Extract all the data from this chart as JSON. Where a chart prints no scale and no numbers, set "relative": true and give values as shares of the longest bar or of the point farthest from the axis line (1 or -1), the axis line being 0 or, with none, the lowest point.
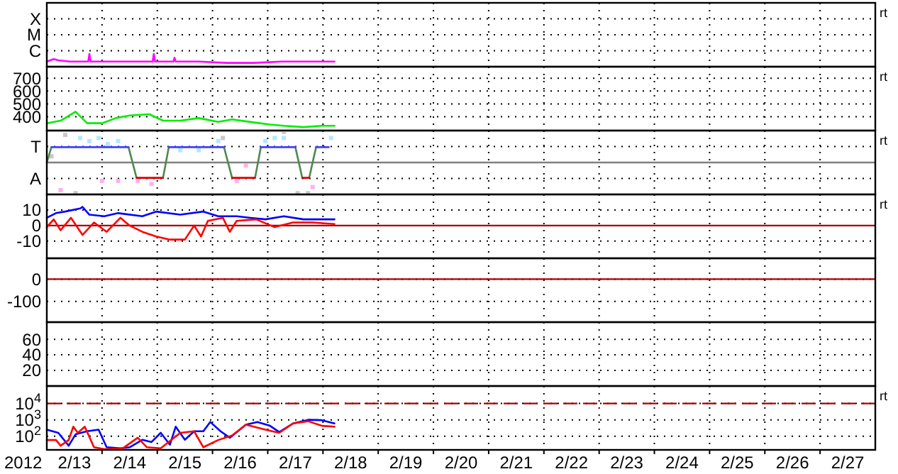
{
  "chart_data": [
    {
      "type": "line",
      "relative": true,
      "xlim": [
        "2012-02-13",
        "2012-02-28"
      ],
      "xticks": [
        {
          "value": "2012-02-14",
          "label": null
        },
        {
          "value": "2012-02-15",
          "label": null
        },
        {
          "value": "2012-02-16",
          "label": null
        },
        {
          "value": "2012-02-17",
          "label": null
        },
        {
          "value": "2012-02-18",
          "label": null
        },
        {
          "value": "2012-02-19",
          "label": null
        },
        {
          "value": "2012-02-20",
          "label": null
        },
        {
          "value": "2012-02-21",
          "label": null
        },
        {
          "value": "2012-02-22",
          "label": null
        },
        {
          "value": "2012-02-23",
          "label": null
        },
        {
          "value": "2012-02-24",
          "label": null
        },
        {
          "value": "2012-02-25",
          "label": null
        },
        {
          "value": "2012-02-26",
          "label": null
        },
        {
          "value": "2012-02-27",
          "label": null
        }
      ],
      "grid": true,
      "tick_labels": "y",
      "y2label": "rt",
      "annotations": [
        "X",
        "M",
        "C"
      ],
      "series": [
        {
          "color": "#ff00ff",
          "x": [
            "2012-02-13T00:00",
            "2012-02-13T03:00",
            "2012-02-13T05:00",
            "2012-02-13T10:00",
            "2012-02-13T18:00",
            "2012-02-13T18:30",
            "2012-02-13T19:00",
            "2012-02-14T06:00",
            "2012-02-14T22:00",
            "2012-02-14T22:30",
            "2012-02-14T23:00",
            "2012-02-15T07:00",
            "2012-02-15T07:30",
            "2012-02-15T08:00",
            "2012-02-15T18:00",
            "2012-02-16T06:00",
            "2012-02-16T18:00",
            "2012-02-17T06:00",
            "2012-02-17T18:00",
            "2012-02-18T05:00"
          ],
          "values": [
            0.4,
            0.6,
            0.5,
            0.4,
            0.4,
            1,
            0.4,
            0.4,
            0.4,
            1,
            0.4,
            0.4,
            0.7,
            0.4,
            0.4,
            0.3,
            0.3,
            0.4,
            0.4,
            0.4
          ]
        }
      ]
    },
    {
      "type": "line",
      "ylim": [
        293,
        789
      ],
      "yticks": [
        700,
        600,
        500,
        400
      ],
      "xlim": [
        "2012-02-13",
        "2012-02-28"
      ],
      "xticks": [
        {
          "value": "2012-02-14",
          "label": null
        },
        {
          "value": "2012-02-15",
          "label": null
        },
        {
          "value": "2012-02-16",
          "label": null
        },
        {
          "value": "2012-02-17",
          "label": null
        },
        {
          "value": "2012-02-18",
          "label": null
        },
        {
          "value": "2012-02-19",
          "label": null
        },
        {
          "value": "2012-02-20",
          "label": null
        },
        {
          "value": "2012-02-21",
          "label": null
        },
        {
          "value": "2012-02-22",
          "label": null
        },
        {
          "value": "2012-02-23",
          "label": null
        },
        {
          "value": "2012-02-24",
          "label": null
        },
        {
          "value": "2012-02-25",
          "label": null
        },
        {
          "value": "2012-02-26",
          "label": null
        },
        {
          "value": "2012-02-27",
          "label": null
        }
      ],
      "grid": true,
      "tick_labels": "y",
      "y2label": "rt",
      "series": [
        {
          "color": "#00ee00",
          "x": [
            "2012-02-13T00:00",
            "2012-02-13T06:00",
            "2012-02-13T12:30",
            "2012-02-13T17:30",
            "2012-02-14T00:00",
            "2012-02-14T06:00",
            "2012-02-14T12:00",
            "2012-02-14T20:30",
            "2012-02-15T02:30",
            "2012-02-15T10:00",
            "2012-02-15T18:00",
            "2012-02-16T02:30",
            "2012-02-16T08:30",
            "2012-02-16T16:30",
            "2012-02-17T01:00",
            "2012-02-17T07:00",
            "2012-02-17T15:30",
            "2012-02-17T23:30",
            "2012-02-18T05:00"
          ],
          "values": [
            350,
            370,
            440,
            350,
            350,
            390,
            410,
            420,
            370,
            370,
            390,
            360,
            380,
            360,
            340,
            330,
            320,
            330,
            330
          ]
        }
      ]
    },
    {
      "type": "line",
      "relative": true,
      "xlim": [
        "2012-02-13",
        "2012-02-28"
      ],
      "xticks": [
        {
          "value": "2012-02-14",
          "label": null
        },
        {
          "value": "2012-02-15",
          "label": null
        },
        {
          "value": "2012-02-16",
          "label": null
        },
        {
          "value": "2012-02-17",
          "label": null
        },
        {
          "value": "2012-02-18",
          "label": null
        },
        {
          "value": "2012-02-19",
          "label": null
        },
        {
          "value": "2012-02-20",
          "label": null
        },
        {
          "value": "2012-02-21",
          "label": null
        },
        {
          "value": "2012-02-22",
          "label": null
        },
        {
          "value": "2012-02-23",
          "label": null
        },
        {
          "value": "2012-02-24",
          "label": null
        },
        {
          "value": "2012-02-25",
          "label": null
        },
        {
          "value": "2012-02-26",
          "label": null
        },
        {
          "value": "2012-02-27",
          "label": null
        }
      ],
      "grid": true,
      "tick_labels": "y",
      "y2label": "rt",
      "annotations": [
        "T",
        "A"
      ],
      "ref_lines": [
        {
          "axis": "y",
          "value": 0,
          "label": null,
          "color": "#808080"
        }
      ],
      "series": [
        {
          "type": "scatter",
          "color": "#b0e8ff",
          "x": [
            "2012-02-13T14:30",
            "2012-02-13T18:30",
            "2012-02-13T22:30",
            "2012-02-14T02:30",
            "2012-02-14T07:00",
            "2012-02-15T10:00",
            "2012-02-15T18:00",
            "2012-02-16T02:30",
            "2012-02-16T23:00",
            "2012-02-17T03:00",
            "2012-02-17T07:00",
            "2012-02-18T03:30"
          ],
          "values": [
            0.8,
            0.7,
            0.8,
            0.6,
            0.7,
            0.4,
            0.4,
            0.7,
            0.7,
            0.8,
            0.8,
            0.8
          ]
        },
        {
          "type": "scatter",
          "color": "#ffb0f0",
          "x": [
            "2012-02-13T06:00",
            "2012-02-14T00:00",
            "2012-02-14T07:00",
            "2012-02-14T15:30",
            "2012-02-14T21:30",
            "2012-02-16T10:30",
            "2012-02-16T14:30",
            "2012-02-17T19:30"
          ],
          "values": [
            -0.9,
            -0.6,
            -0.6,
            -0.6,
            -0.7,
            -0.6,
            -0.1,
            -0.8
          ]
        },
        {
          "type": "scatter",
          "color": "#c8c8c8",
          "x": [
            "2012-02-13T02:00",
            "2012-02-13T08:00",
            "2012-02-13T12:30",
            "2012-02-16T04:30",
            "2012-02-17T07:00",
            "2012-02-17T13:00",
            "2012-02-17T17:30"
          ],
          "values": [
            0.2,
            0.9,
            -1,
            0.8,
            1,
            -1,
            -1
          ]
        },
        {
          "color": "#508850",
          "x": [
            "2012-02-13T00:00",
            "2012-02-13T02:00",
            "2012-02-13T12:00",
            "2012-02-14T11:30",
            "2012-02-14T15:00",
            "2012-02-14T20:00",
            "2012-02-15T02:30",
            "2012-02-15T05:00",
            "2012-02-15T12:00",
            "2012-02-16T05:00",
            "2012-02-16T08:30",
            "2012-02-16T12:00",
            "2012-02-16T18:30",
            "2012-02-16T21:00",
            "2012-02-17T00:00",
            "2012-02-17T12:00",
            "2012-02-17T15:00",
            "2012-02-17T16:00",
            "2012-02-17T18:00",
            "2012-02-17T21:00"
          ],
          "values": [
            0,
            0.5,
            null,
            0.5,
            -0.5,
            null,
            -0.5,
            0.5,
            null,
            0.5,
            -0.5,
            null,
            -0.5,
            0.5,
            null,
            0.5,
            -0.5,
            null,
            -0.5,
            0.5
          ]
        },
        {
          "color": "#4040ff",
          "x": [
            "2012-02-13T02:00",
            "2012-02-14T11:30",
            "2012-02-14T20:00",
            "2012-02-15T05:00",
            "2012-02-16T05:00",
            "2012-02-16T12:00",
            "2012-02-16T21:00",
            "2012-02-17T12:00",
            "2012-02-17T17:00",
            "2012-02-17T21:00",
            "2012-02-18T02:30"
          ],
          "values": [
            0.5,
            0.5,
            null,
            0.5,
            0.5,
            null,
            0.5,
            0.5,
            null,
            0.5,
            0.5
          ]
        },
        {
          "color": "#dd0000",
          "x": [
            "2012-02-14T15:00",
            "2012-02-15T02:30",
            "2012-02-15T12:00",
            "2012-02-16T08:30",
            "2012-02-16T18:30",
            "2012-02-17T00:00",
            "2012-02-17T15:00",
            "2012-02-17T18:00"
          ],
          "values": [
            -0.5,
            -0.5,
            null,
            -0.5,
            -0.5,
            null,
            -0.5,
            -0.5
          ]
        }
      ]
    },
    {
      "type": "line",
      "ylim": [
        -21,
        20
      ],
      "yticks": [
        10,
        0,
        -10
      ],
      "xlim": [
        "2012-02-13",
        "2012-02-28"
      ],
      "xticks": [
        {
          "value": "2012-02-14",
          "label": null
        },
        {
          "value": "2012-02-15",
          "label": null
        },
        {
          "value": "2012-02-16",
          "label": null
        },
        {
          "value": "2012-02-17",
          "label": null
        },
        {
          "value": "2012-02-18",
          "label": null
        },
        {
          "value": "2012-02-19",
          "label": null
        },
        {
          "value": "2012-02-20",
          "label": null
        },
        {
          "value": "2012-02-21",
          "label": null
        },
        {
          "value": "2012-02-22",
          "label": null
        },
        {
          "value": "2012-02-23",
          "label": null
        },
        {
          "value": "2012-02-24",
          "label": null
        },
        {
          "value": "2012-02-25",
          "label": null
        },
        {
          "value": "2012-02-26",
          "label": null
        },
        {
          "value": "2012-02-27",
          "label": null
        }
      ],
      "grid": true,
      "tick_labels": "y",
      "y2label": "rt",
      "ref_lines": [
        {
          "axis": "y",
          "value": 0,
          "label": null,
          "color": "#aa0000"
        }
      ],
      "series": [
        {
          "color": "#0000ff",
          "x": [
            "2012-02-13T00:00",
            "2012-02-13T04:00",
            "2012-02-13T08:00",
            "2012-02-13T14:30",
            "2012-02-13T15:30",
            "2012-02-13T18:30",
            "2012-02-14T01:00",
            "2012-02-14T07:00",
            "2012-02-14T17:30",
            "2012-02-14T23:30",
            "2012-02-15T10:00",
            "2012-02-15T20:00",
            "2012-02-16T02:30",
            "2012-02-16T10:30",
            "2012-02-16T16:30",
            "2012-02-16T23:00",
            "2012-02-17T07:00",
            "2012-02-17T15:30",
            "2012-02-17T23:30",
            "2012-02-18T05:00"
          ],
          "values": [
            5,
            8,
            9,
            11,
            12,
            7,
            6,
            8,
            6,
            9,
            7,
            9,
            6,
            6,
            5,
            4,
            6,
            4,
            4,
            4
          ]
        },
        {
          "color": "#ff0000",
          "x": [
            "2012-02-13T00:00",
            "2012-02-13T03:00",
            "2012-02-13T06:00",
            "2012-02-13T10:30",
            "2012-02-13T15:30",
            "2012-02-13T20:30",
            "2012-02-14T02:00",
            "2012-02-14T08:00",
            "2012-02-14T12:00",
            "2012-02-14T17:30",
            "2012-02-14T23:30",
            "2012-02-15T05:30",
            "2012-02-15T12:00",
            "2012-02-15T16:00",
            "2012-02-15T19:00",
            "2012-02-15T22:00",
            "2012-02-16T04:30",
            "2012-02-16T07:30",
            "2012-02-16T10:30",
            "2012-02-16T19:00",
            "2012-02-17T03:00",
            "2012-02-17T11:00",
            "2012-02-17T19:30",
            "2012-02-18T05:00"
          ],
          "values": [
            -1,
            4,
            -3,
            5,
            -6,
            2,
            -4,
            5,
            0,
            -4,
            -7,
            -9,
            -9,
            0,
            -7,
            3,
            5,
            -4,
            3,
            4,
            -1,
            2,
            2,
            1
          ]
        }
      ]
    },
    {
      "type": "line",
      "ylim": [
        -194,
        94
      ],
      "yticks": [
        0,
        -100
      ],
      "xlim": [
        "2012-02-13",
        "2012-02-28"
      ],
      "xticks": [
        {
          "value": "2012-02-14",
          "label": null
        },
        {
          "value": "2012-02-15",
          "label": null
        },
        {
          "value": "2012-02-16",
          "label": null
        },
        {
          "value": "2012-02-17",
          "label": null
        },
        {
          "value": "2012-02-18",
          "label": null
        },
        {
          "value": "2012-02-19",
          "label": null
        },
        {
          "value": "2012-02-20",
          "label": null
        },
        {
          "value": "2012-02-21",
          "label": null
        },
        {
          "value": "2012-02-22",
          "label": null
        },
        {
          "value": "2012-02-23",
          "label": null
        },
        {
          "value": "2012-02-24",
          "label": null
        },
        {
          "value": "2012-02-25",
          "label": null
        },
        {
          "value": "2012-02-26",
          "label": null
        },
        {
          "value": "2012-02-27",
          "label": null
        }
      ],
      "grid": true,
      "tick_labels": "y",
      "ref_lines": [
        {
          "axis": "y",
          "value": 0,
          "label": null,
          "color": "#aa0000"
        }
      ]
    },
    {
      "type": "line",
      "ylim": [
        0,
        82
      ],
      "yticks": [
        60,
        40,
        20
      ],
      "xlim": [
        "2012-02-13",
        "2012-02-28"
      ],
      "xticks": [
        {
          "value": "2012-02-14",
          "label": null
        },
        {
          "value": "2012-02-15",
          "label": null
        },
        {
          "value": "2012-02-16",
          "label": null
        },
        {
          "value": "2012-02-17",
          "label": null
        },
        {
          "value": "2012-02-18",
          "label": null
        },
        {
          "value": "2012-02-19",
          "label": null
        },
        {
          "value": "2012-02-20",
          "label": null
        },
        {
          "value": "2012-02-21",
          "label": null
        },
        {
          "value": "2012-02-22",
          "label": null
        },
        {
          "value": "2012-02-23",
          "label": null
        },
        {
          "value": "2012-02-24",
          "label": null
        },
        {
          "value": "2012-02-25",
          "label": null
        },
        {
          "value": "2012-02-26",
          "label": null
        },
        {
          "value": "2012-02-27",
          "label": null
        }
      ],
      "grid": true,
      "tick_labels": "y"
    },
    {
      "type": "line",
      "log": true,
      "ylim": [
        14.5,
        117000
      ],
      "yticks": [
        {
          "value": 10000,
          "label": "10$^{4}$"
        },
        {
          "value": 1000,
          "label": "10$^{3}$"
        },
        {
          "value": 100,
          "label": "10$^{2}$"
        }
      ],
      "xlim": [
        "2012-02-13",
        "2012-02-28"
      ],
      "xlabel": "2012",
      "y2label": "rt",
      "xticks": [
        {
          "value": "2012-02-14",
          "label": null
        },
        {
          "value": "2012-02-15",
          "label": null
        },
        {
          "value": "2012-02-16",
          "label": null
        },
        {
          "value": "2012-02-17",
          "label": null
        },
        {
          "value": "2012-02-18",
          "label": null
        },
        {
          "value": "2012-02-19",
          "label": null
        },
        {
          "value": "2012-02-20",
          "label": null
        },
        {
          "value": "2012-02-21",
          "label": null
        },
        {
          "value": "2012-02-22",
          "label": null
        },
        {
          "value": "2012-02-23",
          "label": null
        },
        {
          "value": "2012-02-24",
          "label": null
        },
        {
          "value": "2012-02-25",
          "label": null
        },
        {
          "value": "2012-02-26",
          "label": null
        },
        {
          "value": "2012-02-27",
          "label": null
        },
        {
          "value": "2012-02-13T12:00",
          "label": "2/13"
        },
        {
          "value": "2012-02-14T12:00",
          "label": "2/14"
        },
        {
          "value": "2012-02-15T12:00",
          "label": "2/15"
        },
        {
          "value": "2012-02-16T12:00",
          "label": "2/16"
        },
        {
          "value": "2012-02-17T12:00",
          "label": "2/17"
        },
        {
          "value": "2012-02-18T12:00",
          "label": "2/18"
        },
        {
          "value": "2012-02-19T12:00",
          "label": "2/19"
        },
        {
          "value": "2012-02-20T12:00",
          "label": "2/20"
        },
        {
          "value": "2012-02-21T12:00",
          "label": "2/21"
        },
        {
          "value": "2012-02-22T12:00",
          "label": "2/22"
        },
        {
          "value": "2012-02-23T12:00",
          "label": "2/23"
        },
        {
          "value": "2012-02-24T12:00",
          "label": "2/24"
        },
        {
          "value": "2012-02-25T12:00",
          "label": "2/25"
        },
        {
          "value": "2012-02-26T12:00",
          "label": "2/26"
        },
        {
          "value": "2012-02-27T12:00",
          "label": "2/27"
        }
      ],
      "grid": true,
      "ref_lines": [
        {
          "axis": "y",
          "value": 10000,
          "label": null,
          "color": "#aa0000",
          "line_style": "dashed"
        }
      ],
      "series": [
        {
          "color": "#0000ff",
          "x": [
            "2012-02-13T00:00",
            "2012-02-13T05:00",
            "2012-02-13T09:30",
            "2012-02-13T12:30",
            "2012-02-13T17:30",
            "2012-02-13T22:30",
            "2012-02-14T02:00",
            "2012-02-14T08:00",
            "2012-02-14T12:00",
            "2012-02-14T17:30",
            "2012-02-14T21:30",
            "2012-02-15T01:30",
            "2012-02-15T05:30",
            "2012-02-15T08:00",
            "2012-02-15T12:00",
            "2012-02-15T16:00",
            "2012-02-15T20:00",
            "2012-02-15T23:00",
            "2012-02-16T03:30",
            "2012-02-16T07:30",
            "2012-02-16T14:30",
            "2012-02-16T19:30",
            "2012-02-17T01:00",
            "2012-02-17T05:00",
            "2012-02-17T11:00",
            "2012-02-17T17:30",
            "2012-02-17T23:30",
            "2012-02-18T05:00"
          ],
          "values": [
            250,
            160,
            26,
            130,
            200,
            250,
            21,
            18,
            21,
            60,
            44,
            160,
            30,
            380,
            60,
            200,
            200,
            740,
            200,
            80,
            500,
            740,
            430,
            180,
            600,
            1000,
            950,
            600
          ]
        },
        {
          "color": "#ff0000",
          "x": [
            "2012-02-13T00:00",
            "2012-02-13T04:00",
            "2012-02-13T06:00",
            "2012-02-13T09:30",
            "2012-02-13T11:30",
            "2012-02-13T13:30",
            "2012-02-13T16:30",
            "2012-02-13T20:30",
            "2012-02-14T01:00",
            "2012-02-14T09:00",
            "2012-02-14T15:30",
            "2012-02-14T19:30",
            "2012-02-15T01:30",
            "2012-02-15T10:00",
            "2012-02-15T16:00",
            "2012-02-15T20:00",
            "2012-02-16T02:30",
            "2012-02-16T08:30",
            "2012-02-16T14:30",
            "2012-02-16T23:00",
            "2012-02-17T05:00",
            "2012-02-17T11:00",
            "2012-02-17T17:30",
            "2012-02-17T23:30",
            "2012-02-18T05:00"
          ],
          "values": [
            58,
            58,
            26,
            58,
            380,
            160,
            380,
            21,
            16,
            18,
            80,
            21,
            18,
            160,
            200,
            21,
            58,
            110,
            500,
            250,
            160,
            600,
            820,
            430,
            380
          ]
        }
      ]
    }
  ]
}
